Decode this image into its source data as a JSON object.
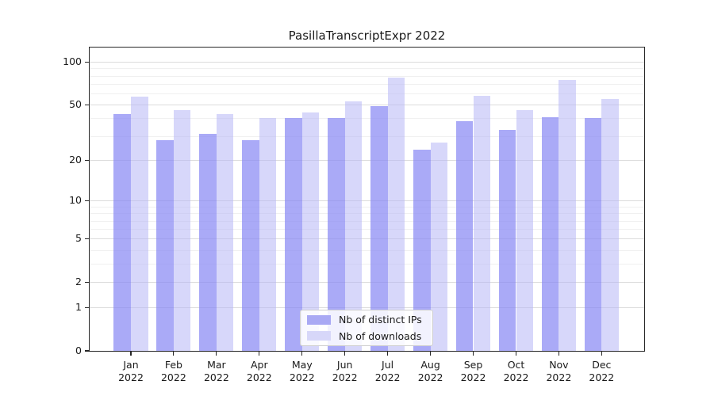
{
  "title": "PasillaTranscriptExpr 2022",
  "chart_data": {
    "type": "bar",
    "title": "PasillaTranscriptExpr 2022",
    "categories": [
      "Jan 2022",
      "Feb 2022",
      "Mar 2022",
      "Apr 2022",
      "May 2022",
      "Jun 2022",
      "Jul 2022",
      "Aug 2022",
      "Sep 2022",
      "Oct 2022",
      "Nov 2022",
      "Dec 2022"
    ],
    "series": [
      {
        "name": "Nb of distinct IPs",
        "color": "#a9a9f4",
        "values": [
          43,
          28,
          31,
          28,
          40,
          40,
          49,
          24,
          38,
          33,
          41,
          40
        ]
      },
      {
        "name": "Nb of downloads",
        "color": "#d7d7f9",
        "values": [
          57,
          46,
          43,
          40,
          44,
          53,
          78,
          27,
          58,
          46,
          75,
          55
        ]
      }
    ],
    "xlabel": "",
    "ylabel": "",
    "yscale": "log1p",
    "ylim": [
      0,
      126
    ],
    "yticks": [
      0,
      1,
      2,
      5,
      10,
      20,
      50,
      100
    ],
    "minor_gridlines": [
      3,
      4,
      6,
      7,
      8,
      9,
      30,
      40,
      60,
      70,
      80,
      90
    ],
    "grid": true,
    "legend_position": "lower center"
  },
  "colors": {
    "bar_ips_fill": "rgba(134,134,243,0.70)",
    "bar_downloads_fill": "rgba(183,183,246,0.55)",
    "grid_major": "#dcdcdc",
    "grid_minor": "#f0f0f0",
    "spine": "#262626",
    "text": "#1a1a1a",
    "background": "#ffffff"
  }
}
